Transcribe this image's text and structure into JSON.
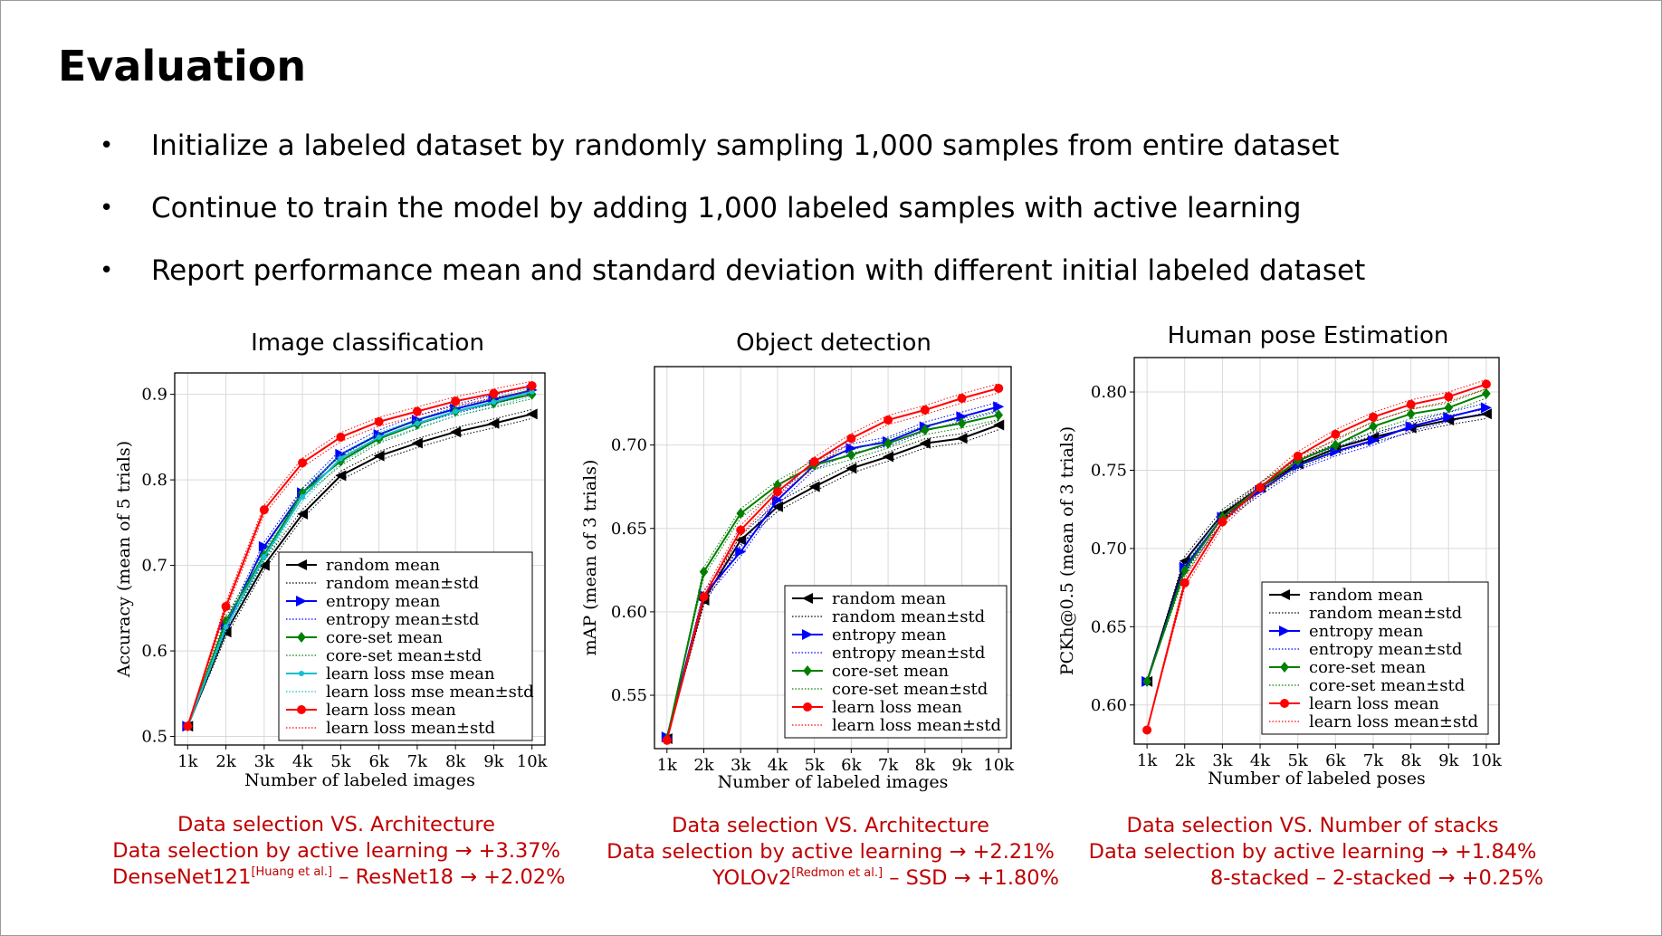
{
  "slide": {
    "title": "Evaluation",
    "bullets": [
      "Initialize a labeled dataset by randomly sampling 1,000 samples from entire dataset",
      "Continue to train the model by adding 1,000 labeled samples with active learning",
      "Report performance mean and standard deviation with different initial labeled dataset"
    ],
    "bullet_glyph": "•"
  },
  "colors": {
    "random": "#000000",
    "entropy": "#0000ff",
    "coreset": "#008000",
    "learnmse": "#17becf",
    "learnloss": "#ff0000",
    "note_text": "#c00000"
  },
  "notes": [
    {
      "line1": "Data selection VS. Architecture",
      "line2": "Data selection by active learning → +3.37%",
      "line3_a": "DenseNet121",
      "line3_sup": "[Huang et al.]",
      "line3_b": " – ResNet18 → +2.02%"
    },
    {
      "line1": "Data selection VS. Architecture",
      "line2": "Data selection by active learning → +2.21%",
      "line3_a": "YOLOv2",
      "line3_sup": "[Redmon et al.]",
      "line3_b": " – SSD → +1.80%"
    },
    {
      "line1": "Data selection VS. Number of stacks",
      "line2": "Data selection by active learning → +1.84%",
      "line3_a": "8-stacked – 2-stacked → +0.25%",
      "line3_sup": "",
      "line3_b": ""
    }
  ],
  "chart_data": [
    {
      "type": "line",
      "title": "Image classification",
      "xlabel": "Number of labeled images",
      "ylabel": "Accuracy (mean of 5 trials)",
      "x": [
        "1k",
        "2k",
        "3k",
        "4k",
        "5k",
        "6k",
        "7k",
        "8k",
        "9k",
        "10k"
      ],
      "ylim": [
        0.49,
        0.925
      ],
      "yticks": [
        0.5,
        0.6,
        0.7,
        0.8,
        0.9
      ],
      "ytick_labels": [
        "0.5",
        "0.6",
        "0.7",
        "0.8",
        "0.9"
      ],
      "grid": true,
      "legend_position": "lower-right",
      "series": [
        {
          "name": "random mean",
          "std_name": "random mean±std",
          "color_key": "random",
          "marker": "triangle-left",
          "values": [
            0.512,
            0.622,
            0.7,
            0.76,
            0.805,
            0.828,
            0.843,
            0.856,
            0.866,
            0.877
          ]
        },
        {
          "name": "entropy mean",
          "std_name": "entropy mean±std",
          "color_key": "entropy",
          "marker": "triangle-right",
          "values": [
            0.512,
            0.63,
            0.722,
            0.785,
            0.83,
            0.853,
            0.87,
            0.883,
            0.894,
            0.905
          ]
        },
        {
          "name": "core-set mean",
          "std_name": "core-set mean±std",
          "color_key": "coreset",
          "marker": "diamond",
          "values": [
            0.512,
            0.635,
            0.712,
            0.785,
            0.822,
            0.848,
            0.865,
            0.88,
            0.89,
            0.9
          ]
        },
        {
          "name": "learn loss mse mean",
          "std_name": "learn loss mse mean±std",
          "color_key": "learnmse",
          "marker": "small-dot",
          "values": [
            0.512,
            0.628,
            0.71,
            0.78,
            0.825,
            0.85,
            0.866,
            0.88,
            0.891,
            0.903
          ]
        },
        {
          "name": "learn loss mean",
          "std_name": "learn loss mean±std",
          "color_key": "learnloss",
          "marker": "circle",
          "values": [
            0.512,
            0.652,
            0.765,
            0.82,
            0.85,
            0.868,
            0.88,
            0.892,
            0.901,
            0.91
          ]
        }
      ]
    },
    {
      "type": "line",
      "title": "Object detection",
      "xlabel": "Number of labeled images",
      "ylabel": "mAP (mean of 3 trials)",
      "x": [
        "1k",
        "2k",
        "3k",
        "4k",
        "5k",
        "6k",
        "7k",
        "8k",
        "9k",
        "10k"
      ],
      "ylim": [
        0.518,
        0.747
      ],
      "yticks": [
        0.55,
        0.6,
        0.65,
        0.7
      ],
      "ytick_labels": [
        "0.55",
        "0.60",
        "0.65",
        "0.70"
      ],
      "grid": true,
      "legend_position": "lower-right",
      "series": [
        {
          "name": "random mean",
          "std_name": "random mean±std",
          "color_key": "random",
          "marker": "triangle-left",
          "values": [
            0.524,
            0.607,
            0.643,
            0.663,
            0.675,
            0.686,
            0.693,
            0.701,
            0.704,
            0.712
          ]
        },
        {
          "name": "entropy mean",
          "std_name": "entropy mean±std",
          "color_key": "entropy",
          "marker": "triangle-right",
          "values": [
            0.525,
            0.61,
            0.636,
            0.667,
            0.688,
            0.698,
            0.702,
            0.711,
            0.717,
            0.723
          ]
        },
        {
          "name": "core-set mean",
          "std_name": "core-set mean±std",
          "color_key": "coreset",
          "marker": "diamond",
          "values": [
            0.524,
            0.624,
            0.659,
            0.676,
            0.688,
            0.694,
            0.701,
            0.709,
            0.713,
            0.718
          ]
        },
        {
          "name": "learn loss mean",
          "std_name": "learn loss mean±std",
          "color_key": "learnloss",
          "marker": "circle",
          "values": [
            0.523,
            0.609,
            0.649,
            0.672,
            0.69,
            0.704,
            0.715,
            0.721,
            0.728,
            0.734
          ]
        }
      ]
    },
    {
      "type": "line",
      "title": "Human pose Estimation",
      "xlabel": "Number of labeled poses",
      "ylabel": "PCKh@0.5 (mean of 3 trials)",
      "x": [
        "1k",
        "2k",
        "3k",
        "4k",
        "5k",
        "6k",
        "7k",
        "8k",
        "9k",
        "10k"
      ],
      "ylim": [
        0.575,
        0.822
      ],
      "yticks": [
        0.6,
        0.65,
        0.7,
        0.75,
        0.8
      ],
      "ytick_labels": [
        "0.60",
        "0.65",
        "0.70",
        "0.75",
        "0.80"
      ],
      "grid": true,
      "legend_position": "lower-right",
      "series": [
        {
          "name": "random mean",
          "std_name": "random mean±std",
          "color_key": "random",
          "marker": "triangle-left",
          "values": [
            0.615,
            0.692,
            0.722,
            0.739,
            0.754,
            0.764,
            0.771,
            0.777,
            0.782,
            0.786
          ]
        },
        {
          "name": "entropy mean",
          "std_name": "entropy mean±std",
          "color_key": "entropy",
          "marker": "triangle-right",
          "values": [
            0.615,
            0.688,
            0.72,
            0.737,
            0.753,
            0.762,
            0.769,
            0.778,
            0.784,
            0.79
          ]
        },
        {
          "name": "core-set mean",
          "std_name": "core-set mean±std",
          "color_key": "coreset",
          "marker": "diamond",
          "values": [
            0.615,
            0.686,
            0.72,
            0.739,
            0.756,
            0.766,
            0.778,
            0.786,
            0.79,
            0.799
          ]
        },
        {
          "name": "learn loss mean",
          "std_name": "learn loss mean±std",
          "color_key": "learnloss",
          "marker": "circle",
          "values": [
            0.584,
            0.678,
            0.717,
            0.739,
            0.759,
            0.773,
            0.784,
            0.792,
            0.797,
            0.805
          ]
        }
      ]
    }
  ]
}
